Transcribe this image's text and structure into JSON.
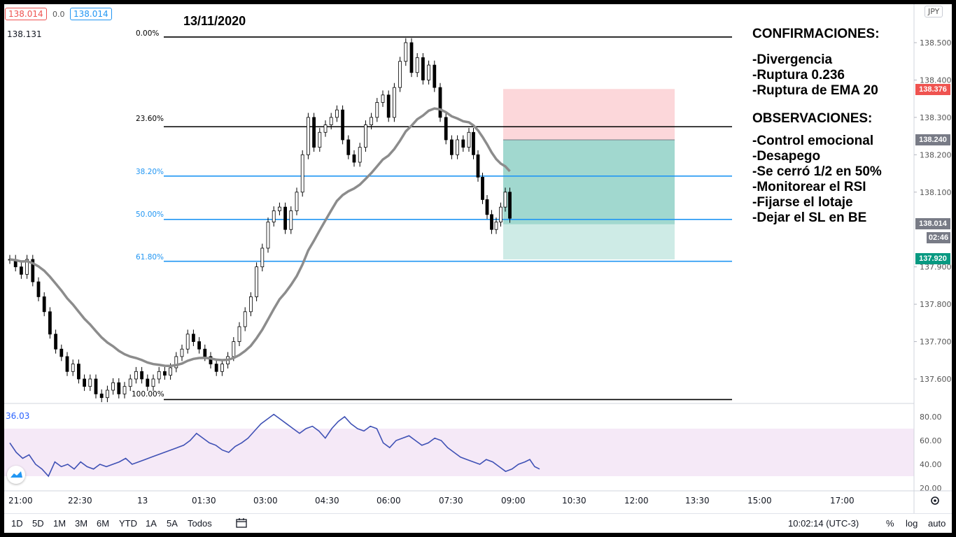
{
  "header": {
    "price_red": "138.014",
    "change": "0.0",
    "price_blue": "138.014",
    "last_close": "138.131",
    "date_title": "13/11/2020",
    "currency": "JPY"
  },
  "fib_levels": [
    {
      "label": "0.00%",
      "price": 138.515,
      "color": "#000000"
    },
    {
      "label": "23.60%",
      "price": 138.275,
      "color": "#000000"
    },
    {
      "label": "38.20%",
      "price": 138.143,
      "color": "#2196f3"
    },
    {
      "label": "50.00%",
      "price": 138.027,
      "color": "#2196f3"
    },
    {
      "label": "61.80%",
      "price": 137.915,
      "color": "#2196f3"
    },
    {
      "label": "100.00%",
      "price": 137.545,
      "color": "#000000"
    }
  ],
  "price_axis": {
    "ticks": [
      "138.500",
      "138.400",
      "138.300",
      "138.200",
      "138.100",
      "137.900",
      "137.800",
      "137.700",
      "137.600"
    ],
    "tags": [
      {
        "label": "138.376",
        "price": 138.376,
        "color": "#ef5350"
      },
      {
        "label": "138.240",
        "price": 138.24,
        "color": "#787b86"
      },
      {
        "label": "138.014",
        "price": 138.014,
        "color": "#787b86"
      },
      {
        "label": "02:46",
        "price": 137.98,
        "color": "#787b86"
      },
      {
        "label": "137.920",
        "price": 137.92,
        "color": "#089981"
      }
    ]
  },
  "notes": {
    "confirm_title": "CONFIRMACIONES:",
    "confirm_items": [
      "-Divergencia",
      "-Ruptura 0.236",
      "-Ruptura de EMA 20"
    ],
    "obs_title": "OBSERVACIONES:",
    "obs_items": [
      "-Control emocional",
      "-Desapego",
      "-Se cerró 1/2 en 50%",
      "-Monitorear el RSI",
      "-Fijarse el lotaje",
      "-Dejar el SL en BE"
    ]
  },
  "rsi": {
    "value_label": "36.03",
    "ticks": [
      "80.00",
      "60.00",
      "40.00",
      "20.00"
    ],
    "band_upper": 70,
    "band_lower": 30
  },
  "time_axis": [
    "21:00",
    "22:30",
    "13",
    "01:30",
    "03:00",
    "04:30",
    "06:00",
    "07:30",
    "09:00",
    "10:30",
    "12:00",
    "13:30",
    "15:00",
    "17:00"
  ],
  "toolbar": {
    "ranges": [
      "1D",
      "5D",
      "1M",
      "3M",
      "6M",
      "YTD",
      "1A",
      "5A",
      "Todos"
    ],
    "clock": "10:02:14 (UTC-3)",
    "percent": "%",
    "log": "log",
    "auto": "auto"
  },
  "position": {
    "stop_price": 138.376,
    "entry_price": 138.24,
    "partial_price": 138.014,
    "target_price": 137.92
  }
}
